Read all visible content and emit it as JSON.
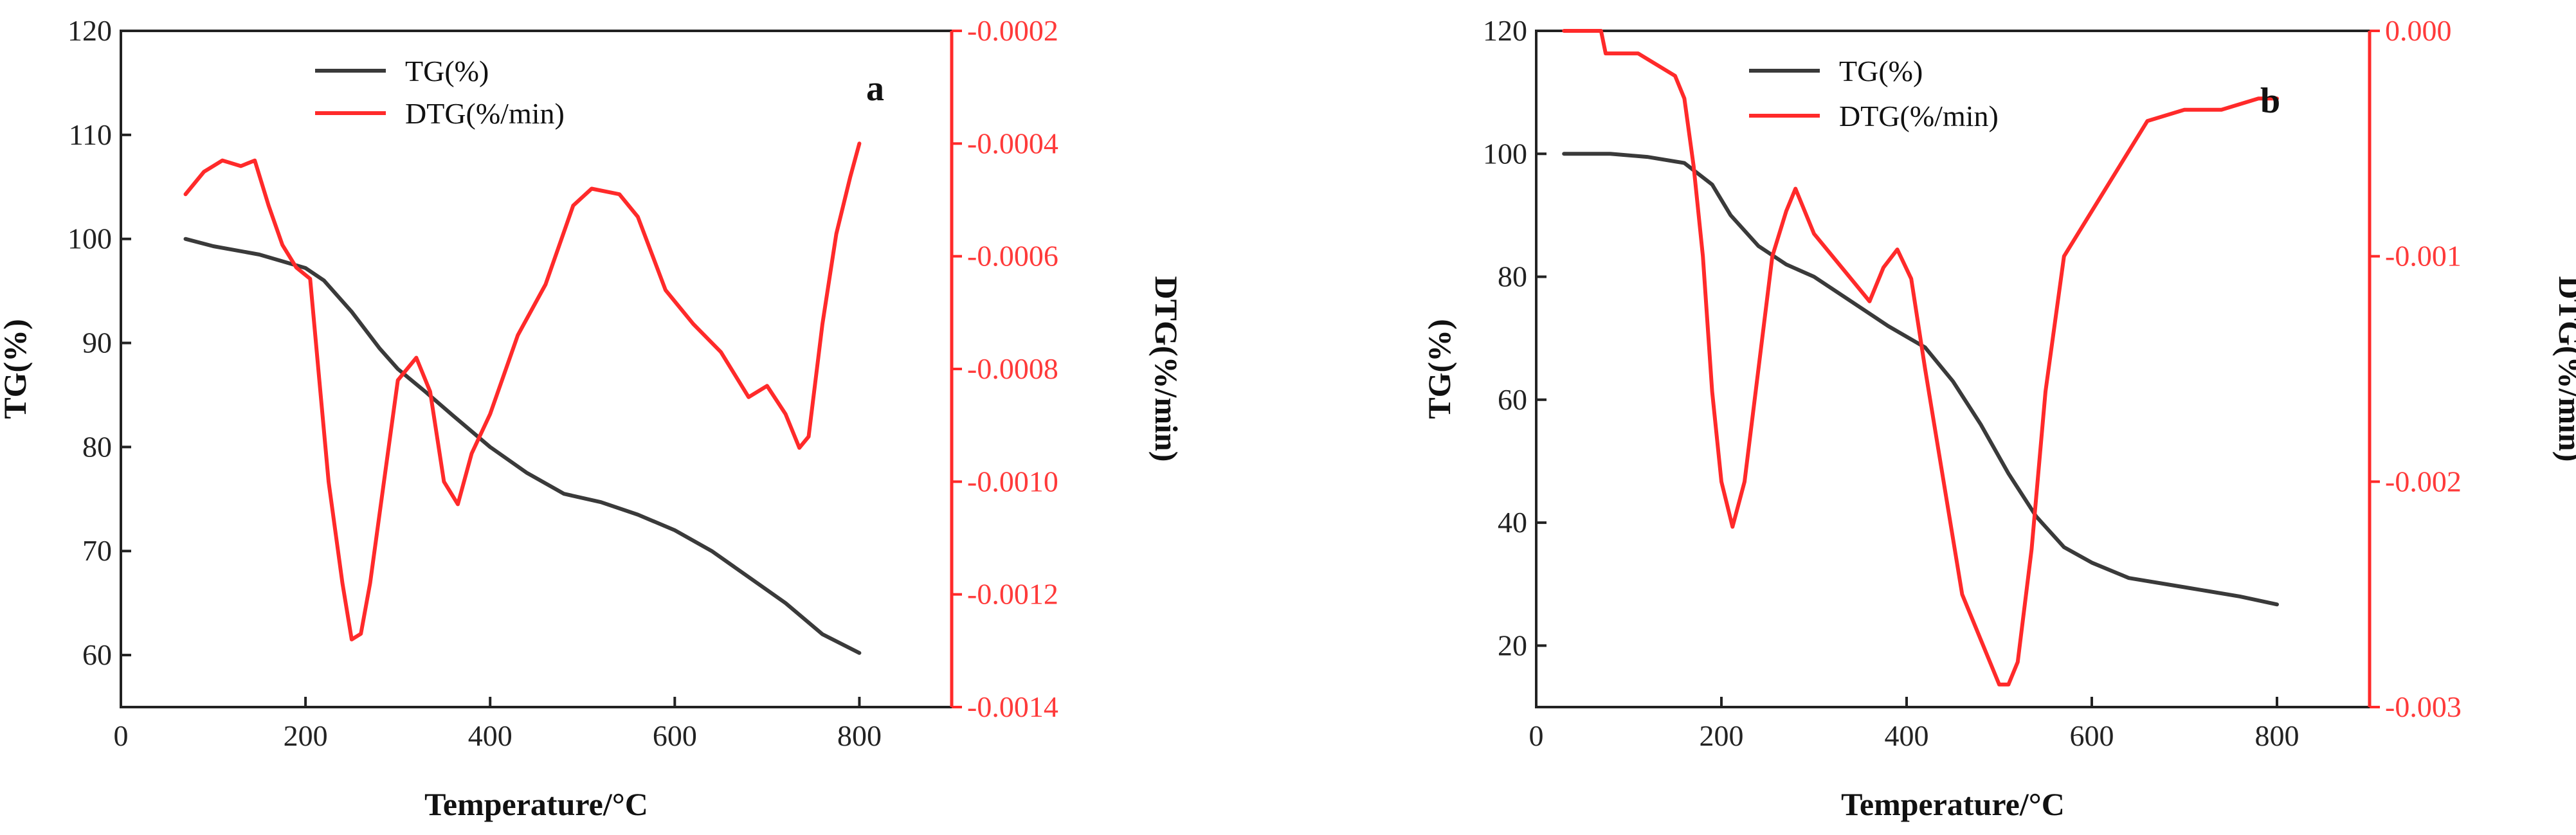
{
  "colors": {
    "tg": "#3a3a3a",
    "dtg": "#ff2a2a",
    "axis": "#222222"
  },
  "chart_data": [
    {
      "type": "line",
      "panel_label": "a",
      "xlabel": "Temperature/°C",
      "ylabel": "TG(%)",
      "y2label": "DTG(%/min)",
      "xlim": [
        0,
        900
      ],
      "xticks": [
        0,
        200,
        400,
        600,
        800
      ],
      "ylim": [
        55,
        120
      ],
      "yticks": [
        60,
        70,
        80,
        90,
        100,
        110,
        120
      ],
      "y2lim": [
        -0.0014,
        -0.0002
      ],
      "y2ticks": [
        -0.0014,
        -0.0012,
        -0.001,
        -0.0008,
        -0.0006,
        -0.0004,
        -0.0002
      ],
      "y2tick_labels": [
        "-0.0014",
        "-0.0012",
        "-0.0010",
        "-0.0008",
        "-0.0006",
        "-0.0004",
        "-0.0002"
      ],
      "legend": [
        "TG(%)",
        "DTG(%/min)"
      ],
      "series": [
        {
          "name": "TG(%)",
          "axis": "left",
          "x": [
            70,
            100,
            150,
            200,
            220,
            250,
            280,
            300,
            330,
            360,
            400,
            440,
            480,
            520,
            560,
            600,
            640,
            680,
            720,
            760,
            800
          ],
          "y": [
            100,
            99.3,
            98.5,
            97.2,
            96,
            93,
            89.5,
            87.5,
            85.3,
            83,
            80,
            77.5,
            75.5,
            74.7,
            73.5,
            72,
            70,
            67.5,
            65,
            62,
            60.2
          ]
        },
        {
          "name": "DTG(%/min)",
          "axis": "right",
          "x": [
            70,
            90,
            110,
            130,
            145,
            160,
            175,
            190,
            205,
            215,
            225,
            240,
            250,
            260,
            270,
            285,
            300,
            320,
            335,
            350,
            365,
            380,
            400,
            430,
            460,
            490,
            510,
            540,
            560,
            590,
            620,
            650,
            680,
            700,
            720,
            735,
            745,
            760,
            775,
            790,
            800
          ],
          "y": [
            -0.00049,
            -0.00045,
            -0.00043,
            -0.00044,
            -0.00043,
            -0.00051,
            -0.00058,
            -0.00062,
            -0.00064,
            -0.00082,
            -0.001,
            -0.00118,
            -0.00128,
            -0.00127,
            -0.00118,
            -0.001,
            -0.00082,
            -0.00078,
            -0.00084,
            -0.001,
            -0.00104,
            -0.00095,
            -0.00088,
            -0.00074,
            -0.00065,
            -0.00051,
            -0.00048,
            -0.00049,
            -0.00053,
            -0.00066,
            -0.00072,
            -0.00077,
            -0.00085,
            -0.00083,
            -0.00088,
            -0.00094,
            -0.00092,
            -0.00072,
            -0.00056,
            -0.00046,
            -0.0004
          ]
        }
      ]
    },
    {
      "type": "line",
      "panel_label": "b",
      "xlabel": "Temperature/°C",
      "ylabel": "TG(%)",
      "y2label": "DTG(%/min)",
      "xlim": [
        0,
        900
      ],
      "xticks": [
        0,
        200,
        400,
        600,
        800
      ],
      "ylim": [
        10,
        120
      ],
      "yticks": [
        20,
        40,
        60,
        80,
        100,
        120
      ],
      "y2lim": [
        -0.003,
        0
      ],
      "y2ticks": [
        -0.003,
        -0.002,
        -0.001,
        0
      ],
      "y2tick_labels": [
        "-0.003",
        "-0.002",
        "-0.001",
        "0.000"
      ],
      "legend": [
        "TG(%)",
        "DTG(%/min)"
      ],
      "series": [
        {
          "name": "TG(%)",
          "axis": "left",
          "x": [
            30,
            80,
            120,
            160,
            190,
            210,
            240,
            270,
            300,
            340,
            380,
            420,
            450,
            480,
            510,
            540,
            570,
            600,
            640,
            700,
            760,
            800
          ],
          "y": [
            100,
            100,
            99.5,
            98.5,
            95,
            90,
            85,
            82,
            80,
            76,
            72,
            68.5,
            63,
            56,
            48,
            41,
            36,
            33.5,
            31,
            29.5,
            28,
            26.7
          ]
        },
        {
          "name": "DTG(%/min)",
          "axis": "right",
          "x": [
            30,
            70,
            75,
            90,
            110,
            130,
            150,
            160,
            170,
            180,
            190,
            200,
            212,
            225,
            240,
            255,
            270,
            280,
            300,
            320,
            340,
            360,
            375,
            390,
            405,
            420,
            440,
            460,
            480,
            500,
            510,
            520,
            535,
            550,
            570,
            600,
            630,
            660,
            700,
            740,
            780,
            800
          ],
          "y": [
            0,
            0,
            -0.0001,
            -0.0001,
            -0.0001,
            -0.00015,
            -0.0002,
            -0.0003,
            -0.0006,
            -0.001,
            -0.0016,
            -0.002,
            -0.0022,
            -0.002,
            -0.0015,
            -0.001,
            -0.0008,
            -0.0007,
            -0.0009,
            -0.001,
            -0.0011,
            -0.0012,
            -0.00105,
            -0.00097,
            -0.0011,
            -0.0015,
            -0.002,
            -0.0025,
            -0.0027,
            -0.0029,
            -0.0029,
            -0.0028,
            -0.0023,
            -0.0016,
            -0.001,
            -0.0008,
            -0.0006,
            -0.0004,
            -0.00035,
            -0.00035,
            -0.0003,
            -0.0003
          ]
        }
      ]
    }
  ]
}
